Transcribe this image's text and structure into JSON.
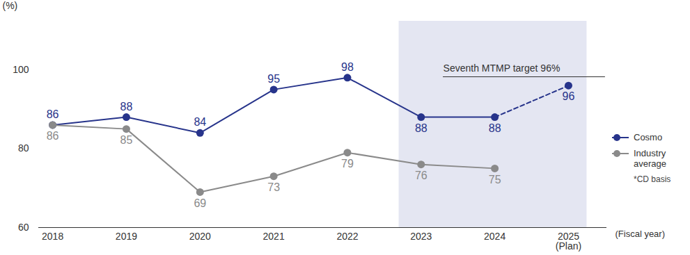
{
  "chart_data": {
    "type": "line",
    "categories": [
      "2018",
      "2019",
      "2020",
      "2021",
      "2022",
      "2023",
      "2024",
      "2025 (Plan)"
    ],
    "series": [
      {
        "name": "Cosmo",
        "color": "#27348b",
        "marker": "circle",
        "values": [
          86,
          88,
          84,
          95,
          98,
          88,
          88,
          96
        ]
      },
      {
        "name": "Industry average",
        "color": "#8a8a8a",
        "marker": "circle",
        "values": [
          86,
          85,
          69,
          73,
          79,
          76,
          75,
          null
        ]
      }
    ],
    "projected": [
      "2025 (Plan)"
    ],
    "ylim": [
      60,
      100
    ],
    "yticks": [
      60,
      80,
      100
    ],
    "y_label": "(%)",
    "x_label": "(Fiscal year)",
    "annotations": [
      {
        "text": "Seventh MTMP target 96%",
        "from": "2023",
        "to": "2025 (Plan)"
      }
    ],
    "note": "*CD basis",
    "data_labels": true,
    "legend": "right",
    "grid": false
  }
}
